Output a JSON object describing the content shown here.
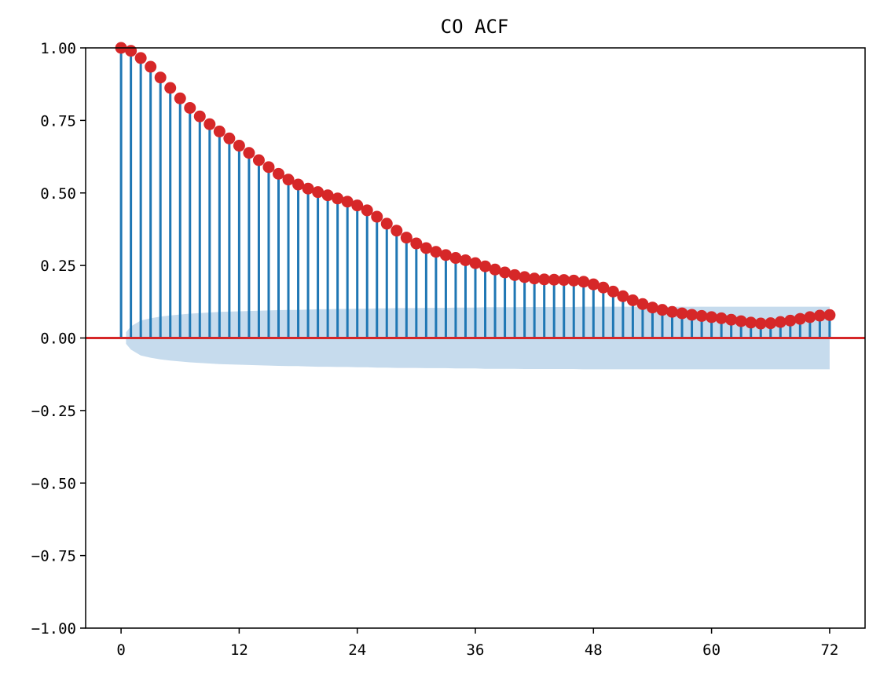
{
  "chart_data": {
    "type": "stem",
    "title": "CO ACF",
    "xlabel": "",
    "ylabel": "",
    "xlim": [
      -3.6,
      75.6
    ],
    "ylim": [
      -1.0,
      1.0
    ],
    "xticks": [
      0,
      12,
      24,
      36,
      48,
      60,
      72
    ],
    "xtick_labels": [
      "0",
      "12",
      "24",
      "36",
      "48",
      "60",
      "72"
    ],
    "yticks": [
      1.0,
      0.75,
      0.5,
      0.25,
      0.0,
      -0.25,
      -0.5,
      -0.75,
      -1.0
    ],
    "ytick_labels": [
      "1.00",
      "0.75",
      "0.50",
      "0.25",
      "0.00",
      "−0.25",
      "−0.50",
      "−0.75",
      "−1.00"
    ],
    "grid": false,
    "legend": "none",
    "colors": {
      "stem": "#1f77b4",
      "marker": "#d62728",
      "zero_line": "#d62728",
      "confidence_band": "#c6dbed"
    },
    "lags": [
      0,
      1,
      2,
      3,
      4,
      5,
      6,
      7,
      8,
      9,
      10,
      11,
      12,
      13,
      14,
      15,
      16,
      17,
      18,
      19,
      20,
      21,
      22,
      23,
      24,
      25,
      26,
      27,
      28,
      29,
      30,
      31,
      32,
      33,
      34,
      35,
      36,
      37,
      38,
      39,
      40,
      41,
      42,
      43,
      44,
      45,
      46,
      47,
      48,
      49,
      50,
      51,
      52,
      53,
      54,
      55,
      56,
      57,
      58,
      59,
      60,
      61,
      62,
      63,
      64,
      65,
      66,
      67,
      68,
      69,
      70,
      71,
      72
    ],
    "acf": [
      1.0,
      0.99,
      0.965,
      0.935,
      0.898,
      0.862,
      0.826,
      0.793,
      0.764,
      0.737,
      0.712,
      0.688,
      0.663,
      0.638,
      0.613,
      0.589,
      0.566,
      0.546,
      0.529,
      0.515,
      0.503,
      0.492,
      0.481,
      0.47,
      0.457,
      0.44,
      0.418,
      0.394,
      0.37,
      0.346,
      0.326,
      0.31,
      0.297,
      0.286,
      0.276,
      0.268,
      0.258,
      0.247,
      0.236,
      0.226,
      0.217,
      0.21,
      0.205,
      0.202,
      0.201,
      0.2,
      0.198,
      0.194,
      0.185,
      0.174,
      0.16,
      0.144,
      0.13,
      0.117,
      0.105,
      0.097,
      0.09,
      0.085,
      0.08,
      0.076,
      0.072,
      0.068,
      0.063,
      0.058,
      0.053,
      0.05,
      0.051,
      0.055,
      0.06,
      0.066,
      0.072,
      0.077,
      0.079
    ],
    "confidence_band_upper": [
      0.02,
      0.04,
      0.06,
      0.068,
      0.074,
      0.078,
      0.081,
      0.084,
      0.086,
      0.088,
      0.09,
      0.091,
      0.092,
      0.093,
      0.094,
      0.095,
      0.096,
      0.097,
      0.097,
      0.098,
      0.099,
      0.099,
      0.1,
      0.1,
      0.101,
      0.101,
      0.102,
      0.102,
      0.103,
      0.103,
      0.103,
      0.104,
      0.104,
      0.104,
      0.105,
      0.105,
      0.105,
      0.106,
      0.106,
      0.106,
      0.106,
      0.107,
      0.107,
      0.107,
      0.107,
      0.107,
      0.107,
      0.108,
      0.108,
      0.108,
      0.108,
      0.108,
      0.108,
      0.108,
      0.108,
      0.108,
      0.108,
      0.108,
      0.108,
      0.108,
      0.108,
      0.108,
      0.108,
      0.108,
      0.108,
      0.108,
      0.108,
      0.108,
      0.108,
      0.108,
      0.108,
      0.108,
      0.108
    ]
  }
}
